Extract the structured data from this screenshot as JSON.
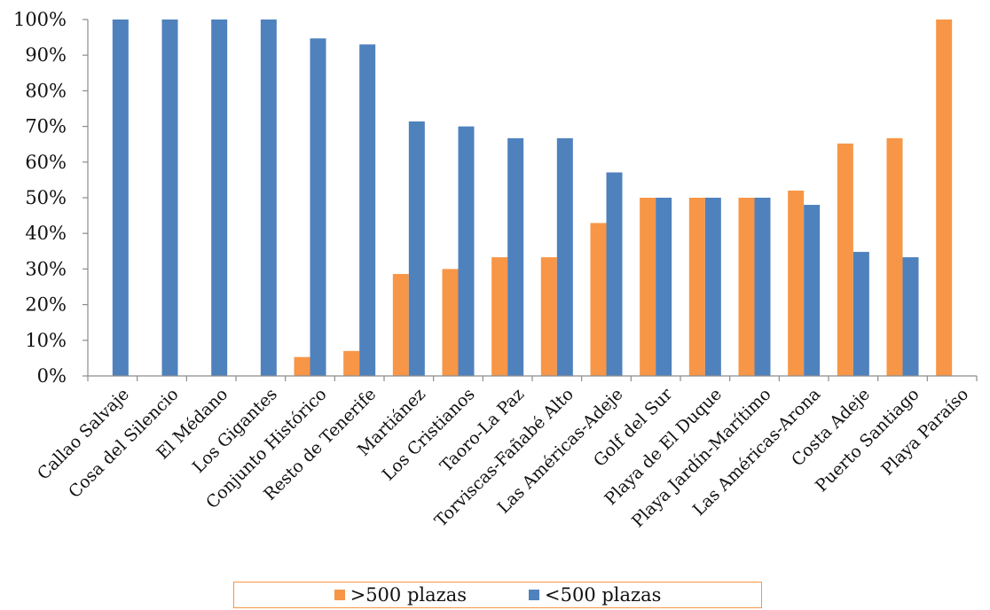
{
  "chart_data": {
    "type": "bar",
    "categories": [
      "Callao Salvaje",
      "Cosa del Silencio",
      "El Médano",
      "Los Gigantes",
      "Conjunto Histórico",
      "Resto de Tenerife",
      "Martiánez",
      "Los Cristianos",
      "Taoro-La Paz",
      "Torviscas-Fañabé Alto",
      "Las Américas-Adeje",
      "Golf del Sur",
      "Playa de El Duque",
      "Playa Jardín-Marítimo",
      "Las Américas-Arona",
      "Costa Adeje",
      "Puerto Santiago",
      "Playa Paraíso"
    ],
    "series": [
      {
        "name": ">500 plazas",
        "color": "#f79646",
        "values": [
          0,
          0,
          0,
          0,
          5.3,
          7,
          28.6,
          30,
          33.3,
          33.3,
          42.9,
          50,
          50,
          50,
          52,
          65.2,
          66.7,
          100
        ]
      },
      {
        "name": "<500 plazas",
        "color": "#4f81bd",
        "values": [
          100,
          100,
          100,
          100,
          94.7,
          93,
          71.4,
          70,
          66.7,
          66.7,
          57.1,
          50,
          50,
          50,
          48,
          34.8,
          33.3,
          0
        ]
      }
    ],
    "ylim": [
      0,
      100
    ],
    "yticks": [
      "0%",
      "10%",
      "20%",
      "30%",
      "40%",
      "50%",
      "60%",
      "70%",
      "80%",
      "90%",
      "100%"
    ],
    "grid": false,
    "legend": "bottom"
  }
}
